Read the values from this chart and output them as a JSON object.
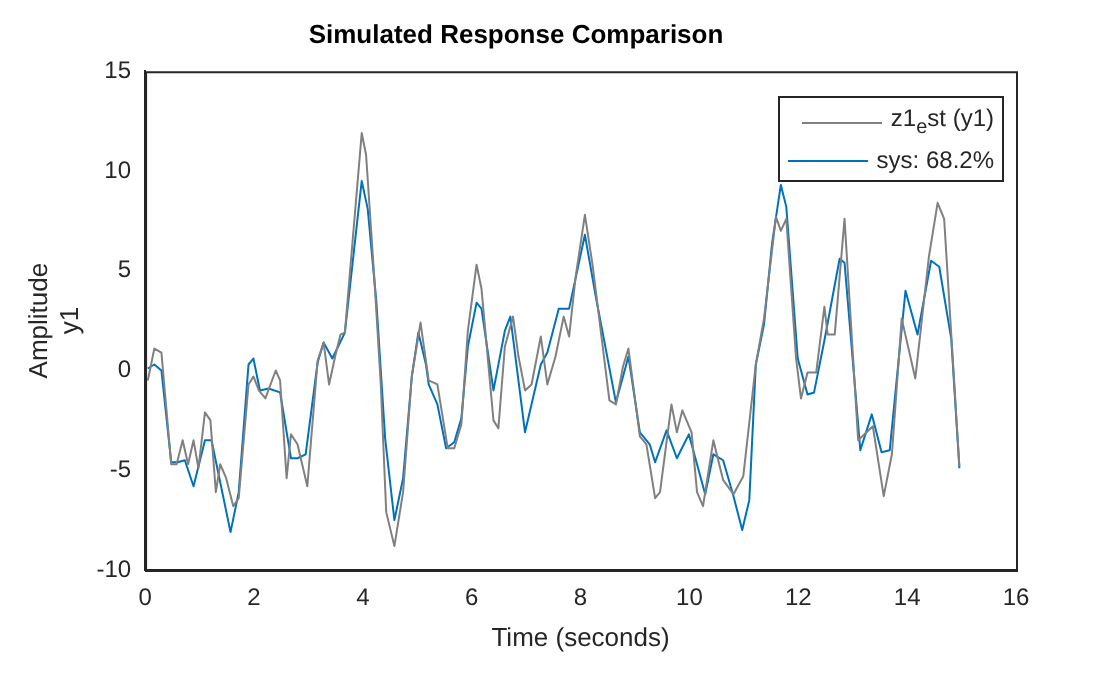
{
  "chart_data": {
    "type": "line",
    "title": "Simulated Response Comparison",
    "xlabel": "Time (seconds)",
    "ylabel": "Amplitude\ny1",
    "xlim": [
      0,
      16
    ],
    "xticks": [
      0,
      2,
      4,
      6,
      8,
      10,
      12,
      14,
      16
    ],
    "ylim": [
      -10,
      15
    ],
    "yticks": [
      -10,
      -5,
      0,
      5,
      10,
      15
    ],
    "grid": false,
    "legend": "top right",
    "marker": "none",
    "line_style": "solid",
    "series": [
      {
        "name": "z1$_{e}$st (y1)",
        "color": "#808080",
        "x": [
          0.05,
          0.17,
          0.3,
          0.48,
          0.58,
          0.69,
          0.79,
          0.89,
          0.98,
          1.1,
          1.2,
          1.3,
          1.38,
          1.49,
          1.62,
          1.72,
          1.9,
          1.99,
          2.09,
          2.21,
          2.4,
          2.48,
          2.6,
          2.68,
          2.8,
          2.98,
          3.17,
          3.28,
          3.38,
          3.5,
          3.59,
          3.67,
          3.98,
          4.06,
          4.21,
          4.33,
          4.43,
          4.58,
          4.74,
          4.9,
          5.06,
          5.21,
          5.37,
          5.56,
          5.68,
          5.81,
          5.93,
          6.09,
          6.18,
          6.4,
          6.49,
          6.61,
          6.76,
          6.86,
          6.98,
          7.1,
          7.27,
          7.39,
          7.54,
          7.69,
          7.79,
          7.91,
          8.08,
          8.22,
          8.53,
          8.65,
          8.78,
          8.88,
          9.09,
          9.21,
          9.37,
          9.46,
          9.67,
          9.77,
          9.87,
          10.04,
          10.14,
          10.25,
          10.44,
          10.62,
          10.81,
          10.99,
          11.22,
          11.37,
          11.59,
          11.68,
          11.78,
          11.96,
          12.05,
          12.17,
          12.33,
          12.48,
          12.54,
          12.67,
          12.85,
          13.1,
          13.37,
          13.57,
          13.72,
          13.9,
          14.15,
          14.4,
          14.56,
          14.68,
          14.96
        ],
        "values": [
          -0.5,
          1.1,
          0.9,
          -4.7,
          -4.7,
          -3.5,
          -4.7,
          -3.5,
          -4.9,
          -2.1,
          -2.5,
          -6.1,
          -4.7,
          -5.4,
          -6.8,
          -6.4,
          -0.7,
          -0.3,
          -1.0,
          -1.4,
          0,
          -0.5,
          -5.4,
          -3.2,
          -3.7,
          -5.8,
          0.5,
          1.4,
          -0.7,
          0.8,
          1.8,
          1.9,
          11.9,
          10.8,
          4.7,
          -0.7,
          -7.1,
          -8.8,
          -6.1,
          -0.3,
          2.4,
          -0.5,
          -0.7,
          -3.9,
          -3.9,
          -2.7,
          2.0,
          5.3,
          4.1,
          -2.5,
          -2.9,
          1.2,
          2.7,
          0.7,
          -1.0,
          -0.7,
          1.7,
          -0.7,
          0.7,
          2.7,
          1.7,
          4.7,
          7.8,
          5.3,
          -1.5,
          -1.7,
          0.2,
          1.1,
          -3.3,
          -3.7,
          -6.4,
          -6.1,
          -1.7,
          -3.1,
          -2.0,
          -3.1,
          -6.1,
          -6.8,
          -3.5,
          -5.5,
          -6.2,
          -5.3,
          0.3,
          2.6,
          7.7,
          7.0,
          7.6,
          0.6,
          -1.4,
          -0.1,
          -0.1,
          3.2,
          1.8,
          1.8,
          7.6,
          -3.5,
          -2.8,
          -6.3,
          -4.2,
          2.6,
          -0.4,
          5.7,
          8.4,
          7.6,
          -4.8
        ]
      },
      {
        "name": "sys: 68.2%",
        "color": "#0072bd",
        "x": [
          0.05,
          0.17,
          0.3,
          0.48,
          0.6,
          0.73,
          0.89,
          1.1,
          1.22,
          1.57,
          1.72,
          1.9,
          1.99,
          2.11,
          2.27,
          2.48,
          2.68,
          2.8,
          2.95,
          3.17,
          3.28,
          3.44,
          3.67,
          3.98,
          4.09,
          4.25,
          4.41,
          4.58,
          4.74,
          4.9,
          5.02,
          5.16,
          5.21,
          5.37,
          5.53,
          5.68,
          5.81,
          5.93,
          6.09,
          6.18,
          6.4,
          6.61,
          6.71,
          6.98,
          7.27,
          7.39,
          7.6,
          7.79,
          8.08,
          8.28,
          8.65,
          8.88,
          9.09,
          9.27,
          9.37,
          9.58,
          9.77,
          9.99,
          10.29,
          10.44,
          10.62,
          10.81,
          10.97,
          11.1,
          11.22,
          11.37,
          11.52,
          11.68,
          11.78,
          11.99,
          12.17,
          12.29,
          12.48,
          12.76,
          12.85,
          13.14,
          13.35,
          13.53,
          13.68,
          13.97,
          14.19,
          14.44,
          14.59,
          14.81,
          14.96
        ],
        "values": [
          0.1,
          0.3,
          0,
          -4.6,
          -4.6,
          -4.5,
          -5.8,
          -3.5,
          -3.5,
          -8.1,
          -6.1,
          0.3,
          0.6,
          -1.0,
          -0.9,
          -1.1,
          -4.4,
          -4.4,
          -4.2,
          0.4,
          1.4,
          0.6,
          1.9,
          9.5,
          8.1,
          3.4,
          -3.4,
          -7.5,
          -5.4,
          -0.3,
          1.9,
          0.3,
          -0.7,
          -1.7,
          -3.9,
          -3.6,
          -2.4,
          1.2,
          3.4,
          3.1,
          -1.0,
          2.0,
          2.7,
          -3.1,
          0.3,
          0.9,
          3.1,
          3.1,
          6.8,
          3.7,
          -1.6,
          0.7,
          -3.1,
          -3.7,
          -4.6,
          -3.0,
          -4.4,
          -3.2,
          -6.2,
          -4.2,
          -4.5,
          -6.3,
          -8.0,
          -6.5,
          0.3,
          2.3,
          6.4,
          9.3,
          8.2,
          0.6,
          -1.2,
          -1.1,
          1.5,
          5.6,
          5.4,
          -4.0,
          -2.2,
          -4.1,
          -4.0,
          4.0,
          1.8,
          5.5,
          5.2,
          1.6,
          -4.9
        ]
      }
    ]
  }
}
